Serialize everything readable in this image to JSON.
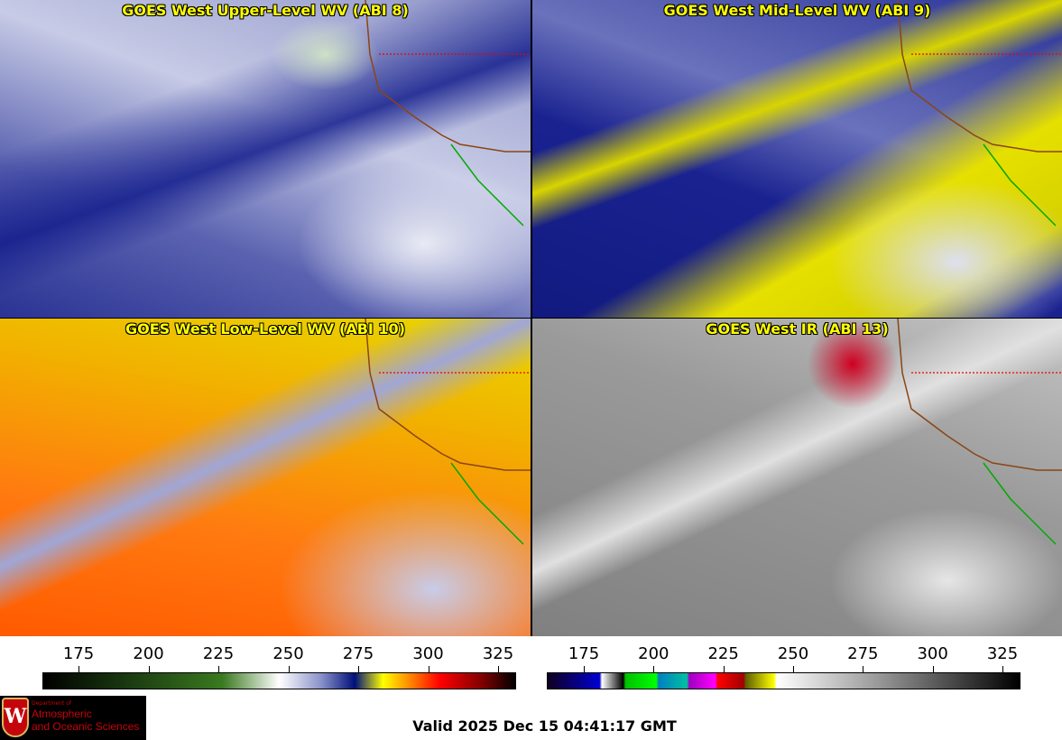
{
  "panels": [
    {
      "title": "GOES West Upper-Level WV (ABI 8)"
    },
    {
      "title": "GOES West Mid-Level WV (ABI 9)"
    },
    {
      "title": "GOES West Low-Level WV (ABI 10)"
    },
    {
      "title": "GOES West IR (ABI 13)"
    }
  ],
  "colorbars": [
    {
      "name": "water-vapor",
      "ticks": [
        "175",
        "200",
        "225",
        "250",
        "275",
        "300",
        "325"
      ]
    },
    {
      "name": "infrared",
      "ticks": [
        "175",
        "200",
        "225",
        "250",
        "275",
        "300",
        "325"
      ]
    }
  ],
  "logo": {
    "line1": "Department of",
    "line2": "Atmospheric",
    "line3": "and Oceanic Sciences",
    "emblem": "W"
  },
  "valid_time": "Valid 2025 Dec 15 04:41:17 GMT"
}
